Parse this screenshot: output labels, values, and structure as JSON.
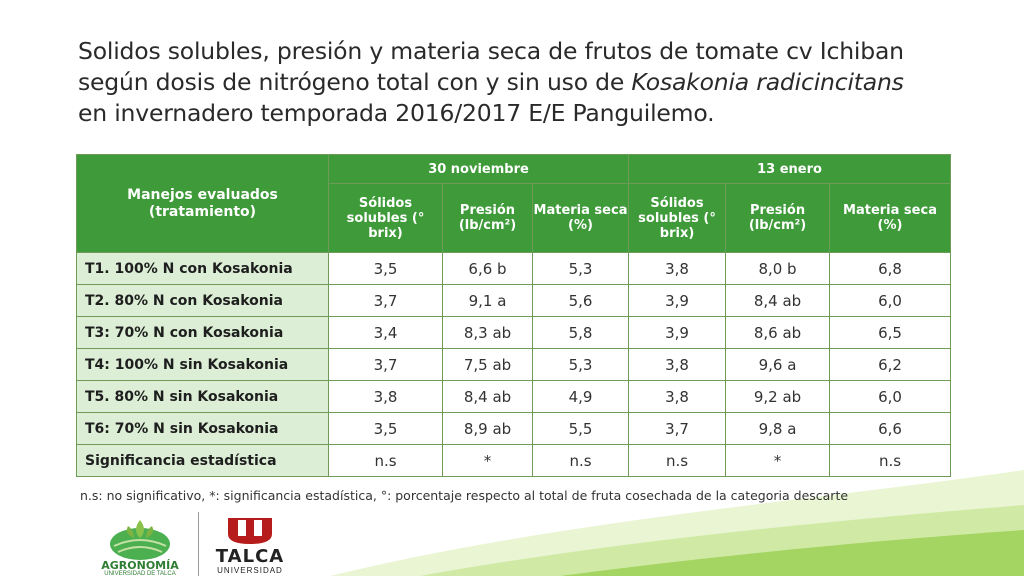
{
  "title": {
    "line1": "Solidos solubles, presión y materia seca de frutos de tomate cv Ichiban",
    "line2_pre": "según dosis de nitrógeno total con y sin uso de ",
    "line2_italic": "Kosakonia radicincitans",
    "line3": "en invernadero  temporada 2016/2017 E/E Panguilemo."
  },
  "table": {
    "corner_header": "Manejos evaluados (tratamiento)",
    "groups": [
      "30 noviembre",
      "13 enero"
    ],
    "columns": [
      "Sólidos solubles (° brix)",
      "Presión (lb/cm²)",
      "Materia seca (%)",
      "Sólidos solubles (° brix)",
      "Presión (lb/cm²)",
      "Materia seca (%)"
    ],
    "rows": [
      {
        "label": "T1. 100% N con Kosakonia",
        "values": [
          "3,5",
          "6,6 b",
          "5,3",
          "3,8",
          "8,0 b",
          "6,8"
        ]
      },
      {
        "label": "T2. 80% N con  Kosakonia",
        "values": [
          "3,7",
          "9,1 a",
          "5,6",
          "3,9",
          "8,4 ab",
          "6,0"
        ]
      },
      {
        "label": "T3: 70% N con Kosakonia",
        "values": [
          "3,4",
          "8,3 ab",
          "5,8",
          "3,9",
          "8,6 ab",
          "6,5"
        ]
      },
      {
        "label": "T4: 100% N sin Kosakonia",
        "values": [
          "3,7",
          "7,5 ab",
          "5,3",
          "3,8",
          "9,6 a",
          "6,2"
        ]
      },
      {
        "label": "T5. 80% N sin Kosakonia",
        "values": [
          "3,8",
          "8,4 ab",
          "4,9",
          "3,8",
          "9,2 ab",
          "6,0"
        ]
      },
      {
        "label": "T6: 70% N sin Kosakonia",
        "values": [
          "3,5",
          "8,9 ab",
          "5,5",
          "3,7",
          "9,8 a",
          "6,6"
        ]
      },
      {
        "label": "Significancia estadística",
        "values": [
          "n.s",
          "*",
          "n.s",
          "n.s",
          "*",
          "n.s"
        ]
      }
    ]
  },
  "footnote": "n.s: no significativo, *: significancia estadística, °: porcentaje respecto al total de fruta cosechada de la categoria descarte",
  "logos": {
    "agronomia": "AGRONOMÍA",
    "agronomia_sub": "UNIVERSIDAD DE TALCA",
    "talca": "TALCA",
    "talca_sub": "UNIVERSIDAD"
  },
  "colors": {
    "header_green": "#3f9b3a",
    "rowlabel_green": "#dcefd6"
  }
}
